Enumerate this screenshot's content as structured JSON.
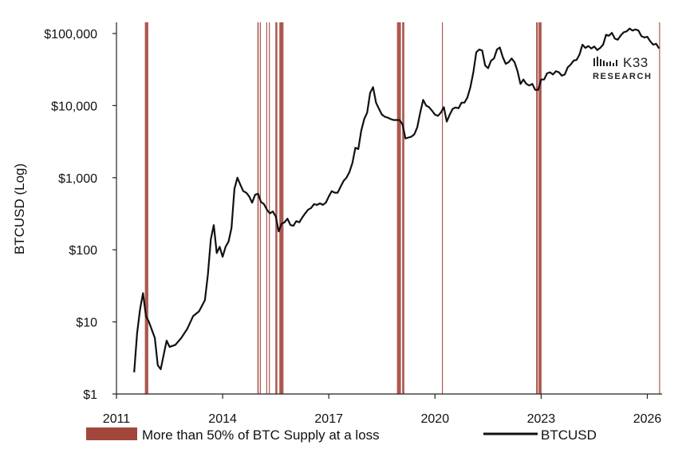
{
  "chart_data": {
    "type": "line",
    "title": "",
    "xlabel": "",
    "ylabel": "BTCUSD (Log)",
    "y_scale": "log",
    "ylim": [
      1,
      100000
    ],
    "xlim": [
      "2011-01",
      "2026-06"
    ],
    "x_tick_labels": [
      "2011",
      "2014",
      "2017",
      "2020",
      "2023",
      "2026"
    ],
    "y_tick_labels": [
      "$1",
      "$10",
      "$100",
      "$1,000",
      "$10,000",
      "$100,000"
    ],
    "grid": false,
    "legend_position": "bottom",
    "logo": {
      "main": "K33",
      "sub": "RESEARCH"
    },
    "series": [
      {
        "name": "BTCUSD",
        "color": "#111111",
        "points": [
          [
            "2011-07",
            2.0
          ],
          [
            "2011-08",
            7.0
          ],
          [
            "2011-09",
            15.0
          ],
          [
            "2011-10",
            25.0
          ],
          [
            "2011-11",
            12.0
          ],
          [
            "2011-12",
            10.0
          ],
          [
            "2012-02",
            6.0
          ],
          [
            "2012-03",
            2.5
          ],
          [
            "2012-04",
            2.2
          ],
          [
            "2012-05",
            3.5
          ],
          [
            "2012-06",
            5.5
          ],
          [
            "2012-07",
            4.5
          ],
          [
            "2012-09",
            4.8
          ],
          [
            "2012-11",
            6.0
          ],
          [
            "2013-01",
            8.0
          ],
          [
            "2013-03",
            12.0
          ],
          [
            "2013-05",
            14.0
          ],
          [
            "2013-07",
            20.0
          ],
          [
            "2013-08",
            45.0
          ],
          [
            "2013-09",
            140.0
          ],
          [
            "2013-10",
            220.0
          ],
          [
            "2013-11",
            90.0
          ],
          [
            "2013-12",
            110.0
          ],
          [
            "2014-01",
            80.0
          ],
          [
            "2014-02",
            110.0
          ],
          [
            "2014-03",
            130.0
          ],
          [
            "2014-04",
            200.0
          ],
          [
            "2014-05",
            700.0
          ],
          [
            "2014-06",
            1000.0
          ],
          [
            "2014-07",
            800.0
          ],
          [
            "2014-08",
            650.0
          ],
          [
            "2014-09",
            620.0
          ],
          [
            "2014-10",
            550.0
          ],
          [
            "2014-11",
            450.0
          ],
          [
            "2014-12",
            580.0
          ],
          [
            "2015-01",
            600.0
          ],
          [
            "2015-02",
            460.0
          ],
          [
            "2015-03",
            430.0
          ],
          [
            "2015-04",
            360.0
          ],
          [
            "2015-05",
            320.0
          ],
          [
            "2015-06",
            340.0
          ],
          [
            "2015-07",
            290.0
          ],
          [
            "2015-08",
            180.0
          ],
          [
            "2015-09",
            230.0
          ],
          [
            "2015-10",
            240.0
          ],
          [
            "2015-11",
            270.0
          ],
          [
            "2015-12",
            220.0
          ],
          [
            "2016-01",
            215.0
          ],
          [
            "2016-02",
            250.0
          ],
          [
            "2016-03",
            240.0
          ],
          [
            "2016-04",
            280.0
          ],
          [
            "2016-05",
            320.0
          ],
          [
            "2016-06",
            360.0
          ],
          [
            "2016-07",
            380.0
          ],
          [
            "2016-08",
            430.0
          ],
          [
            "2016-09",
            420.0
          ],
          [
            "2016-10",
            440.0
          ],
          [
            "2016-11",
            420.0
          ],
          [
            "2016-12",
            450.0
          ],
          [
            "2017-01",
            550.0
          ],
          [
            "2017-02",
            650.0
          ],
          [
            "2017-03",
            620.0
          ],
          [
            "2017-04",
            620.0
          ],
          [
            "2017-05",
            750.0
          ],
          [
            "2017-06",
            900.0
          ],
          [
            "2017-07",
            1000.0
          ],
          [
            "2017-08",
            1200.0
          ],
          [
            "2017-09",
            1600.0
          ],
          [
            "2017-10",
            2600.0
          ],
          [
            "2017-11",
            2500.0
          ],
          [
            "2017-12",
            4500.0
          ],
          [
            "2018-01",
            6500.0
          ],
          [
            "2018-02",
            8000.0
          ],
          [
            "2018-03",
            15000.0
          ],
          [
            "2018-04",
            18000.0
          ],
          [
            "2018-05",
            11000.0
          ],
          [
            "2018-06",
            9000.0
          ],
          [
            "2018-07",
            7500.0
          ],
          [
            "2018-08",
            7000.0
          ],
          [
            "2018-09",
            6800.0
          ],
          [
            "2018-10",
            6500.0
          ],
          [
            "2018-11",
            6300.0
          ],
          [
            "2018-12",
            6300.0
          ],
          [
            "2019-01",
            6300.0
          ],
          [
            "2019-02",
            5500.0
          ],
          [
            "2019-03",
            3500.0
          ],
          [
            "2019-04",
            3600.0
          ],
          [
            "2019-05",
            3700.0
          ],
          [
            "2019-06",
            4000.0
          ],
          [
            "2019-07",
            5000.0
          ],
          [
            "2019-08",
            8000.0
          ],
          [
            "2019-09",
            12000.0
          ],
          [
            "2019-10",
            10000.0
          ],
          [
            "2019-11",
            9500.0
          ],
          [
            "2019-12",
            8500.0
          ],
          [
            "2020-01",
            7500.0
          ],
          [
            "2020-02",
            7200.0
          ],
          [
            "2020-03",
            8000.0
          ],
          [
            "2020-04",
            9500.0
          ],
          [
            "2020-05",
            6000.0
          ],
          [
            "2020-06",
            7500.0
          ],
          [
            "2020-07",
            9000.0
          ],
          [
            "2020-08",
            9400.0
          ],
          [
            "2020-09",
            9200.0
          ],
          [
            "2020-10",
            11000.0
          ],
          [
            "2020-11",
            11000.0
          ],
          [
            "2020-12",
            13000.0
          ],
          [
            "2021-01",
            18000.0
          ],
          [
            "2021-02",
            29000.0
          ],
          [
            "2021-03",
            55000.0
          ],
          [
            "2021-04",
            60000.0
          ],
          [
            "2021-05",
            58000.0
          ],
          [
            "2021-06",
            36000.0
          ],
          [
            "2021-07",
            33000.0
          ],
          [
            "2021-08",
            42000.0
          ],
          [
            "2021-09",
            45000.0
          ],
          [
            "2021-10",
            60000.0
          ],
          [
            "2021-11",
            64000.0
          ],
          [
            "2021-12",
            47000.0
          ],
          [
            "2022-01",
            38000.0
          ],
          [
            "2022-02",
            40000.0
          ],
          [
            "2022-03",
            45000.0
          ],
          [
            "2022-04",
            40000.0
          ],
          [
            "2022-05",
            30000.0
          ],
          [
            "2022-06",
            20000.0
          ],
          [
            "2022-07",
            23000.0
          ],
          [
            "2022-08",
            20000.0
          ],
          [
            "2022-09",
            19000.0
          ],
          [
            "2022-10",
            20000.0
          ],
          [
            "2022-11",
            16500.0
          ],
          [
            "2022-12",
            16500.0
          ],
          [
            "2023-01",
            23000.0
          ],
          [
            "2023-02",
            23000.0
          ],
          [
            "2023-03",
            28000.0
          ],
          [
            "2023-04",
            29000.0
          ],
          [
            "2023-05",
            27000.0
          ],
          [
            "2023-06",
            30000.0
          ],
          [
            "2023-07",
            29000.0
          ],
          [
            "2023-08",
            26000.0
          ],
          [
            "2023-09",
            27000.0
          ],
          [
            "2023-10",
            34000.0
          ],
          [
            "2023-11",
            37000.0
          ],
          [
            "2023-12",
            42000.0
          ],
          [
            "2024-01",
            43000.0
          ],
          [
            "2024-02",
            51000.0
          ],
          [
            "2024-03",
            70000.0
          ],
          [
            "2024-04",
            63000.0
          ],
          [
            "2024-05",
            67000.0
          ],
          [
            "2024-06",
            62000.0
          ],
          [
            "2024-07",
            66000.0
          ],
          [
            "2024-08",
            59000.0
          ],
          [
            "2024-09",
            63000.0
          ],
          [
            "2024-10",
            70000.0
          ],
          [
            "2024-11",
            96000.0
          ],
          [
            "2024-12",
            93000.0
          ],
          [
            "2025-01",
            102000.0
          ],
          [
            "2025-02",
            85000.0
          ],
          [
            "2025-03",
            82000.0
          ],
          [
            "2025-04",
            94000.0
          ],
          [
            "2025-05",
            104000.0
          ],
          [
            "2025-06",
            107000.0
          ],
          [
            "2025-07",
            117000.0
          ],
          [
            "2025-08",
            110000.0
          ],
          [
            "2025-09",
            114000.0
          ],
          [
            "2025-10",
            110000.0
          ],
          [
            "2025-11",
            92000.0
          ],
          [
            "2025-12",
            88000.0
          ],
          [
            "2026-01",
            90000.0
          ],
          [
            "2026-02",
            78000.0
          ],
          [
            "2026-03",
            70000.0
          ],
          [
            "2026-04",
            72000.0
          ],
          [
            "2026-05",
            62000.0
          ]
        ]
      }
    ],
    "shaded_regions": {
      "name": "More than 50% of BTC Supply at a loss",
      "color": "#a3463b",
      "periods": [
        [
          "2011-10-20",
          "2011-11-25"
        ],
        [
          "2014-12-25",
          "2015-01-08"
        ],
        [
          "2015-01-20",
          "2015-01-28"
        ],
        [
          "2015-03-25",
          "2015-04-02"
        ],
        [
          "2015-04-22",
          "2015-05-01"
        ],
        [
          "2015-06-28",
          "2015-07-18"
        ],
        [
          "2015-08-08",
          "2015-09-20"
        ],
        [
          "2018-12-05",
          "2019-01-15"
        ],
        [
          "2019-01-28",
          "2019-02-20"
        ],
        [
          "2020-03-12",
          "2020-03-17"
        ],
        [
          "2022-11-10",
          "2022-11-28"
        ],
        [
          "2022-12-05",
          "2023-01-05"
        ],
        [
          "2026-05-01",
          "2026-05-10"
        ]
      ]
    }
  }
}
